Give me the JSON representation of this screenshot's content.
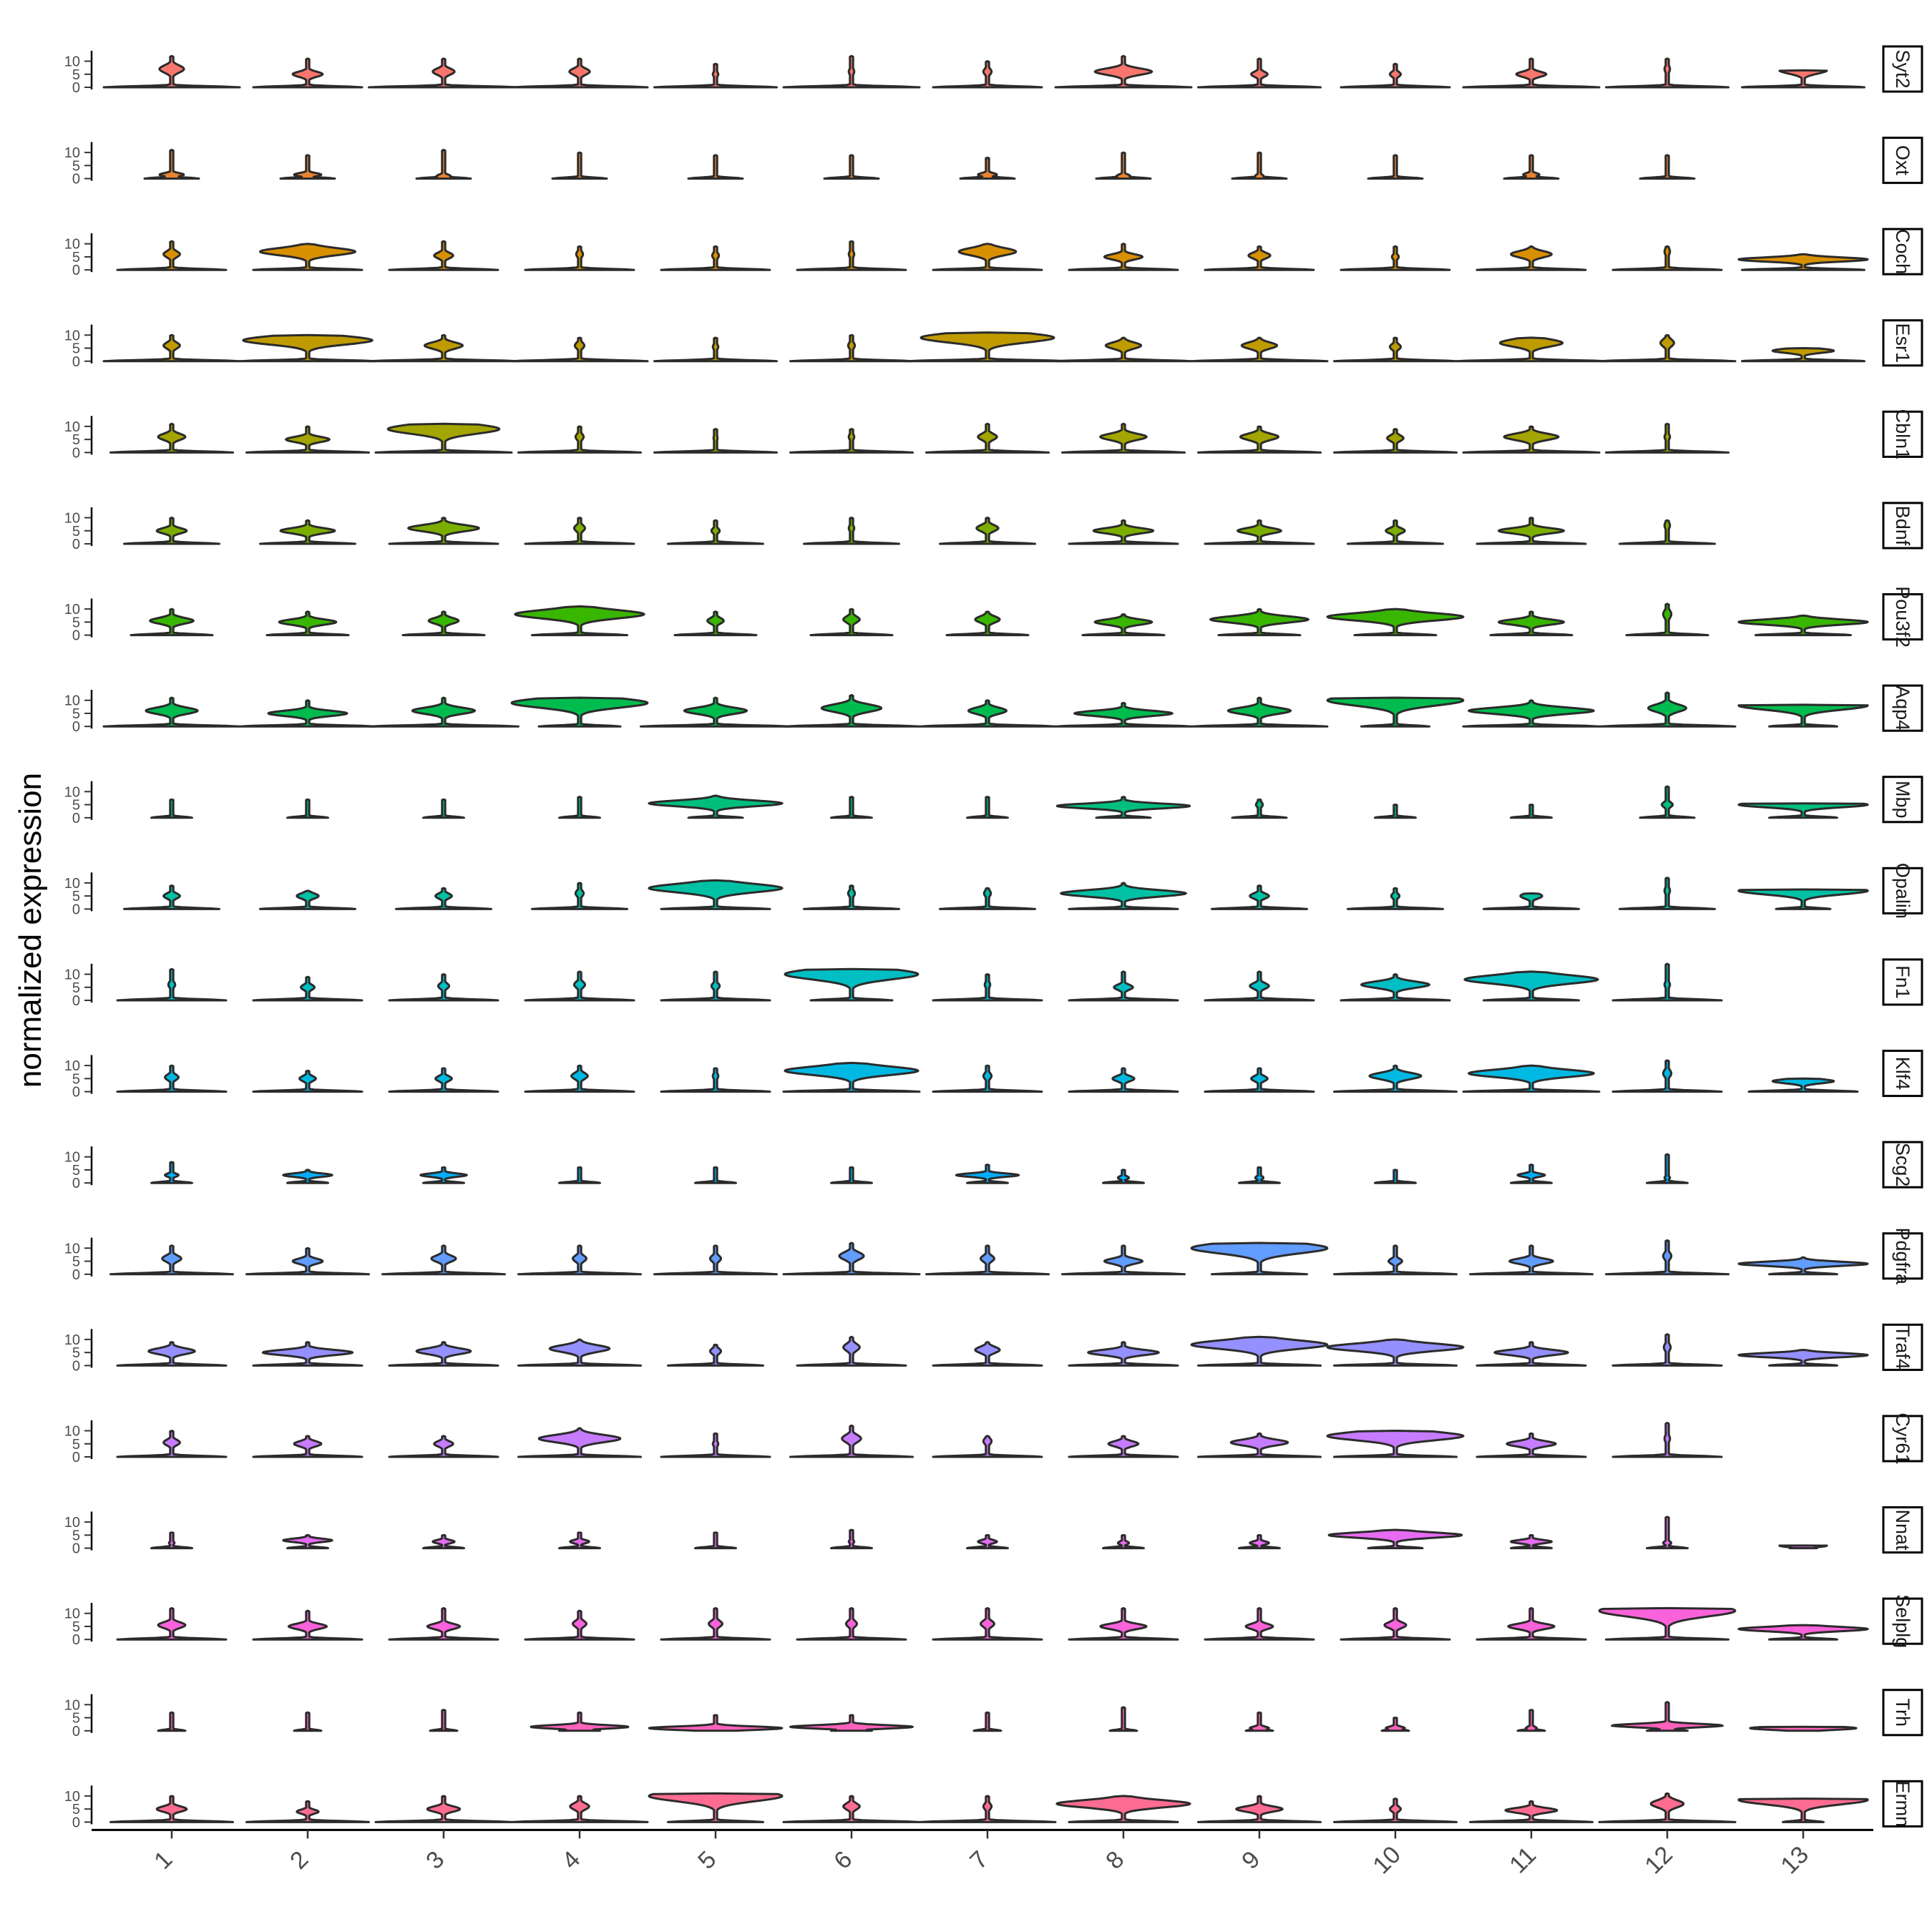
{
  "chart_data": {
    "type": "stacked-violin",
    "ylabel": "normalized expression",
    "y_ticks": [
      "10",
      "5",
      "0"
    ],
    "ylim": [
      0,
      14
    ],
    "clusters": [
      "1",
      "2",
      "3",
      "4",
      "5",
      "6",
      "7",
      "8",
      "9",
      "10",
      "11",
      "12",
      "13"
    ],
    "genes": [
      {
        "name": "Syt2",
        "color": "#F8766D",
        "mode": [
          7,
          5,
          6,
          6,
          5,
          6,
          6,
          6,
          5,
          5,
          5,
          7,
          6.5
        ],
        "top": [
          12,
          11,
          11,
          11,
          9,
          12,
          10,
          12,
          11,
          9,
          11,
          11,
          6.5
        ],
        "width": [
          0.18,
          0.22,
          0.16,
          0.15,
          0.04,
          0.04,
          0.06,
          0.42,
          0.12,
          0.08,
          0.22,
          0.04,
          0.35
        ],
        "body": [
          1.0,
          0.8,
          1.1,
          1.0,
          0.9,
          1.0,
          0.8,
          1.0,
          0.9,
          0.8,
          1.0,
          0.9,
          0.9
        ]
      },
      {
        "name": "Oxt",
        "color": "#EA8331",
        "mode": [
          1.5,
          1.5,
          1,
          0.5,
          0.5,
          0.5,
          1.5,
          1,
          1,
          0.5,
          1.5,
          1,
          0
        ],
        "top": [
          11,
          9,
          11,
          10,
          9,
          9,
          8,
          10,
          10,
          9,
          9,
          9,
          0
        ],
        "width": [
          0.18,
          0.2,
          0.1,
          0.02,
          0.02,
          0.02,
          0.14,
          0.1,
          0.06,
          0.02,
          0.12,
          0.02,
          0
        ],
        "body": [
          0.4,
          0.4,
          0.4,
          0.4,
          0.4,
          0.4,
          0.4,
          0.4,
          0.4,
          0.4,
          0.4,
          0.4,
          0
        ]
      },
      {
        "name": "Coch",
        "color": "#D89000",
        "mode": [
          6,
          7,
          5.5,
          6,
          5.5,
          6,
          7,
          5,
          5.5,
          5,
          6,
          7,
          4
        ],
        "top": [
          11,
          10,
          11,
          9,
          9,
          11,
          10,
          10,
          9,
          9,
          9,
          9,
          6
        ],
        "width": [
          0.12,
          0.7,
          0.14,
          0.05,
          0.05,
          0.04,
          0.42,
          0.28,
          0.16,
          0.05,
          0.3,
          0.04,
          0.95
        ],
        "body": [
          0.8,
          0.8,
          0.8,
          0.8,
          0.8,
          0.8,
          0.8,
          0.8,
          0.8,
          0.8,
          0.8,
          0.8,
          0.9
        ]
      },
      {
        "name": "Esr1",
        "color": "#C09B00",
        "mode": [
          6,
          8,
          6,
          6,
          5.5,
          6,
          9,
          6,
          6,
          5.5,
          7,
          7,
          4
        ],
        "top": [
          10,
          10,
          10,
          9,
          9,
          10,
          11,
          9,
          9,
          9,
          9,
          10,
          5
        ],
        "width": [
          0.12,
          0.95,
          0.28,
          0.07,
          0.04,
          0.05,
          0.98,
          0.26,
          0.26,
          0.08,
          0.46,
          0.1,
          0.45
        ],
        "body": [
          1.0,
          1.0,
          1.1,
          1.0,
          0.9,
          0.9,
          1.2,
          1.0,
          1.0,
          0.9,
          1.1,
          1.0,
          0.9
        ]
      },
      {
        "name": "Cbln1",
        "color": "#A3A500",
        "mode": [
          6,
          5,
          9,
          6,
          5.5,
          6,
          6,
          6,
          6,
          5.5,
          6,
          6,
          0
        ],
        "top": [
          11,
          10,
          11,
          10,
          9,
          9,
          11,
          11,
          10,
          9,
          10,
          11,
          0
        ],
        "width": [
          0.2,
          0.32,
          0.82,
          0.06,
          0.03,
          0.04,
          0.14,
          0.34,
          0.28,
          0.12,
          0.4,
          0.04,
          0
        ],
        "body": [
          0.9,
          0.9,
          1.0,
          0.9,
          0.9,
          0.9,
          0.9,
          0.9,
          0.9,
          0.9,
          1.0,
          0.9,
          0
        ]
      },
      {
        "name": "Bdnf",
        "color": "#7CAE00",
        "mode": [
          5,
          5,
          6,
          6,
          5,
          6,
          6,
          5,
          5,
          5,
          5,
          7,
          0
        ],
        "top": [
          10,
          9,
          10,
          10,
          9,
          10,
          10,
          9,
          9,
          9,
          10,
          9,
          0
        ],
        "width": [
          0.22,
          0.4,
          0.52,
          0.08,
          0.06,
          0.04,
          0.16,
          0.44,
          0.32,
          0.14,
          0.48,
          0.04,
          0
        ],
        "body": [
          0.7,
          0.7,
          0.8,
          0.8,
          0.7,
          0.7,
          0.7,
          0.8,
          0.8,
          0.7,
          0.8,
          0.7,
          0
        ]
      },
      {
        "name": "Pou3f2",
        "color": "#39B600",
        "mode": [
          5.5,
          5,
          5.5,
          8,
          5.5,
          6,
          6,
          5,
          6,
          7,
          5,
          8,
          5
        ],
        "top": [
          10,
          9,
          9,
          11,
          9,
          10,
          9,
          8,
          10,
          10,
          9,
          12,
          7.5
        ],
        "width": [
          0.32,
          0.42,
          0.22,
          0.95,
          0.12,
          0.12,
          0.18,
          0.42,
          0.72,
          1.0,
          0.48,
          0.06,
          0.95
        ],
        "body": [
          0.6,
          0.6,
          0.6,
          0.7,
          0.6,
          0.6,
          0.6,
          0.6,
          0.6,
          0.6,
          0.6,
          0.6,
          0.7
        ]
      },
      {
        "name": "Aqp4",
        "color": "#00BB4E",
        "mode": [
          6,
          5,
          6,
          9,
          6,
          7,
          6,
          5,
          6,
          10,
          6,
          7,
          8
        ],
        "top": [
          11,
          10,
          11,
          11,
          11,
          12,
          10,
          9,
          11,
          11,
          10,
          13,
          8.3
        ],
        "width": [
          0.38,
          0.58,
          0.46,
          1.0,
          0.46,
          0.44,
          0.28,
          0.72,
          0.46,
          1.0,
          0.92,
          0.28,
          0.95
        ],
        "body": [
          1.0,
          1.0,
          1.1,
          0.6,
          1.1,
          1.0,
          1.0,
          1.0,
          1.0,
          0.5,
          1.0,
          1.0,
          0.5
        ]
      },
      {
        "name": "Mbp",
        "color": "#00BF7D",
        "mode": [
          3,
          3,
          3,
          3,
          5.5,
          4,
          3,
          4.5,
          5,
          2,
          2,
          5,
          5
        ],
        "top": [
          7,
          7,
          7,
          8,
          8.5,
          8,
          8,
          8,
          7,
          5,
          5,
          12,
          5.5
        ],
        "width": [
          0.02,
          0.02,
          0.02,
          0.02,
          0.98,
          0.02,
          0.02,
          0.98,
          0.05,
          0.02,
          0.02,
          0.08,
          0.95
        ],
        "body": [
          0.3,
          0.3,
          0.3,
          0.3,
          0.4,
          0.3,
          0.3,
          0.4,
          0.4,
          0.3,
          0.3,
          0.4,
          0.5
        ]
      },
      {
        "name": "Opalin",
        "color": "#00C1A3",
        "mode": [
          5,
          5,
          5,
          6,
          8,
          6,
          6,
          6,
          5,
          5,
          5,
          7,
          7
        ],
        "top": [
          9,
          7,
          8,
          10,
          11,
          9,
          8,
          10,
          9,
          8,
          6,
          12,
          7.5
        ],
        "width": [
          0.12,
          0.16,
          0.12,
          0.06,
          0.98,
          0.05,
          0.05,
          0.92,
          0.14,
          0.06,
          0.16,
          0.04,
          0.95
        ],
        "body": [
          0.7,
          0.7,
          0.7,
          0.7,
          0.8,
          0.7,
          0.7,
          0.8,
          0.7,
          0.7,
          0.7,
          0.7,
          0.4
        ]
      },
      {
        "name": "Fn1",
        "color": "#00BFC4",
        "mode": [
          6,
          5,
          5.5,
          6,
          5.5,
          10,
          6,
          5,
          5.5,
          6,
          8,
          6,
          0
        ],
        "top": [
          12,
          9,
          10,
          11,
          11,
          12,
          10,
          11,
          11,
          10,
          11,
          14,
          0
        ],
        "width": [
          0.05,
          0.1,
          0.08,
          0.08,
          0.06,
          0.98,
          0.04,
          0.14,
          0.14,
          0.5,
          0.98,
          0.04,
          0
        ],
        "body": [
          0.8,
          0.8,
          0.8,
          0.8,
          0.8,
          0.6,
          0.8,
          0.8,
          0.8,
          0.8,
          0.7,
          0.8,
          0
        ]
      },
      {
        "name": "Klf4",
        "color": "#00B9E3",
        "mode": [
          5.5,
          5,
          5,
          6,
          6,
          8,
          6,
          5,
          5,
          6,
          7,
          7,
          4
        ],
        "top": [
          10,
          8,
          9,
          10,
          9,
          11,
          10,
          9,
          9,
          10,
          10,
          12,
          5
        ],
        "width": [
          0.1,
          0.12,
          0.12,
          0.12,
          0.04,
          0.98,
          0.06,
          0.16,
          0.12,
          0.38,
          0.92,
          0.06,
          0.45
        ],
        "body": [
          0.8,
          0.8,
          0.8,
          0.8,
          0.8,
          1.0,
          0.8,
          0.8,
          0.8,
          0.9,
          1.0,
          0.8,
          0.8
        ]
      },
      {
        "name": "Scg2",
        "color": "#00ADFA",
        "mode": [
          3,
          3,
          3,
          2,
          2,
          2,
          3,
          2,
          2,
          2,
          3,
          2,
          0
        ],
        "top": [
          8,
          5,
          6,
          6,
          6,
          6,
          7,
          5,
          6,
          5,
          7,
          11,
          0
        ],
        "width": [
          0.1,
          0.36,
          0.34,
          0.02,
          0.02,
          0.02,
          0.46,
          0.08,
          0.06,
          0.02,
          0.2,
          0.04,
          0
        ],
        "body": [
          0.3,
          0.3,
          0.3,
          0.3,
          0.3,
          0.3,
          0.3,
          0.3,
          0.3,
          0.3,
          0.3,
          0.3,
          0
        ]
      },
      {
        "name": "Pdgfra",
        "color": "#619CFF",
        "mode": [
          6,
          5,
          6,
          6,
          6,
          7,
          6,
          5,
          10,
          5,
          5,
          7,
          4
        ],
        "top": [
          11,
          10,
          11,
          11,
          11,
          12,
          11,
          11,
          12,
          11,
          11,
          13,
          6.5
        ],
        "width": [
          0.14,
          0.22,
          0.18,
          0.1,
          0.08,
          0.18,
          0.1,
          0.28,
          1.0,
          0.1,
          0.32,
          0.06,
          0.95
        ],
        "body": [
          0.9,
          0.9,
          0.9,
          0.9,
          0.9,
          1.0,
          0.9,
          0.9,
          0.7,
          0.9,
          0.9,
          0.9,
          0.5
        ]
      },
      {
        "name": "Traf4",
        "color": "#9590FF",
        "mode": [
          5.5,
          5,
          5.5,
          6.5,
          5.5,
          7,
          6,
          5,
          8,
          7,
          5,
          7,
          4
        ],
        "top": [
          9,
          9,
          9,
          10,
          8,
          11,
          9,
          9,
          11,
          10,
          9,
          12,
          6
        ],
        "width": [
          0.34,
          0.66,
          0.4,
          0.44,
          0.08,
          0.12,
          0.18,
          0.52,
          1.0,
          1.0,
          0.54,
          0.05,
          0.95
        ],
        "body": [
          0.8,
          0.8,
          0.8,
          0.9,
          0.7,
          0.8,
          0.8,
          0.8,
          0.9,
          0.9,
          0.8,
          0.8,
          0.5
        ]
      },
      {
        "name": "Cyr61",
        "color": "#C77CFF",
        "mode": [
          5.5,
          5,
          5,
          7,
          5,
          7,
          6,
          5,
          5.5,
          8,
          5,
          7,
          0
        ],
        "top": [
          10,
          8,
          8,
          11,
          9,
          12,
          8,
          8,
          9,
          10,
          9,
          13,
          0
        ],
        "width": [
          0.12,
          0.2,
          0.14,
          0.6,
          0.04,
          0.14,
          0.06,
          0.22,
          0.42,
          1.0,
          0.36,
          0.04,
          0
        ],
        "body": [
          0.8,
          0.8,
          0.8,
          0.9,
          0.8,
          0.9,
          0.8,
          0.8,
          0.9,
          0.9,
          0.8,
          0.8,
          0
        ]
      },
      {
        "name": "Nnat",
        "color": "#E76BF3",
        "mode": [
          2,
          3,
          2.5,
          2.5,
          2,
          2.5,
          2.5,
          2,
          2,
          5,
          2.5,
          2,
          1
        ],
        "top": [
          6,
          5,
          5,
          6,
          6,
          7,
          5,
          5,
          5,
          7,
          5,
          12,
          1
        ],
        "width": [
          0.04,
          0.36,
          0.16,
          0.14,
          0.02,
          0.04,
          0.14,
          0.08,
          0.14,
          0.98,
          0.3,
          0.06,
          0.35
        ],
        "body": [
          0.3,
          0.3,
          0.3,
          0.3,
          0.3,
          0.3,
          0.3,
          0.3,
          0.3,
          0.4,
          0.3,
          0.3,
          0.2
        ]
      },
      {
        "name": "Selplg",
        "color": "#FA62DB",
        "mode": [
          5.5,
          5,
          5,
          6,
          6,
          6,
          6,
          5,
          5,
          5.5,
          5,
          11,
          4
        ],
        "top": [
          12,
          11,
          12,
          11,
          12,
          12,
          12,
          12,
          12,
          12,
          12,
          12,
          5.5
        ],
        "width": [
          0.2,
          0.28,
          0.24,
          0.1,
          0.1,
          0.08,
          0.1,
          0.34,
          0.2,
          0.16,
          0.34,
          1.0,
          0.95
        ],
        "body": [
          0.8,
          0.8,
          0.8,
          0.8,
          0.8,
          0.8,
          0.8,
          0.8,
          0.8,
          0.8,
          0.8,
          0.9,
          0.5
        ]
      },
      {
        "name": "Trh",
        "color": "#FF62BC",
        "mode": [
          0.5,
          0.5,
          0.5,
          1.5,
          1,
          1.5,
          0.5,
          0.5,
          1,
          1,
          1,
          2,
          1
        ],
        "top": [
          7,
          7,
          8,
          7,
          6,
          6,
          7,
          9,
          7,
          5,
          8,
          11,
          1.5
        ],
        "width": [
          0.02,
          0.02,
          0.02,
          0.72,
          0.98,
          0.9,
          0.02,
          0.02,
          0.14,
          0.14,
          0.08,
          0.82,
          0.78
        ],
        "body": [
          0.2,
          0.2,
          0.2,
          0.3,
          0.3,
          0.3,
          0.2,
          0.2,
          0.2,
          0.2,
          0.2,
          0.3,
          0.2
        ]
      },
      {
        "name": "Ermn",
        "color": "#FF6C91",
        "mode": [
          5,
          4,
          5,
          6,
          10,
          6,
          6,
          7,
          5,
          5,
          4.5,
          7,
          8.5
        ],
        "top": [
          10,
          8,
          10,
          10,
          11,
          10,
          10,
          10,
          10,
          9,
          8,
          11,
          9
        ],
        "width": [
          0.22,
          0.16,
          0.24,
          0.14,
          0.98,
          0.12,
          0.06,
          0.98,
          0.34,
          0.08,
          0.38,
          0.24,
          0.95
        ],
        "body": [
          0.9,
          0.9,
          1.0,
          1.0,
          0.7,
          1.0,
          1.0,
          0.8,
          0.9,
          0.9,
          0.9,
          1.0,
          0.3
        ]
      }
    ]
  }
}
